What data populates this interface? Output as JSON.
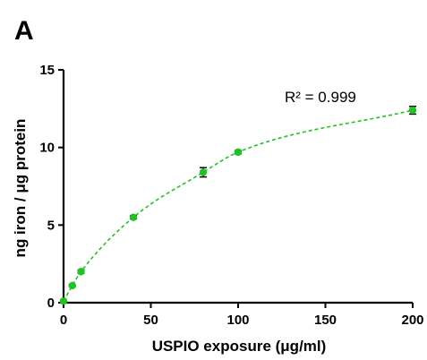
{
  "panel_label": "A",
  "chart_data": {
    "type": "scatter",
    "xlabel": "USPIO exposure (μg/ml)",
    "ylabel": "ng iron / μg protein",
    "xlim": [
      0,
      200
    ],
    "ylim": [
      0,
      15
    ],
    "x_ticks": [
      0,
      50,
      100,
      150,
      200
    ],
    "y_ticks": [
      0,
      5,
      10,
      15
    ],
    "grid": false,
    "annotation": "R² = 0.999",
    "colors": {
      "series": "#1ec51e",
      "error_bars": "#000000"
    },
    "series": [
      {
        "x": [
          0,
          5,
          10,
          40,
          80,
          100,
          200
        ],
        "y": [
          0.1,
          1.1,
          2.0,
          5.5,
          8.4,
          9.7,
          12.4
        ],
        "error": [
          0.05,
          0.05,
          0.1,
          0.1,
          0.3,
          0.1,
          0.25
        ],
        "fit": "dashed saturating curve"
      }
    ]
  }
}
